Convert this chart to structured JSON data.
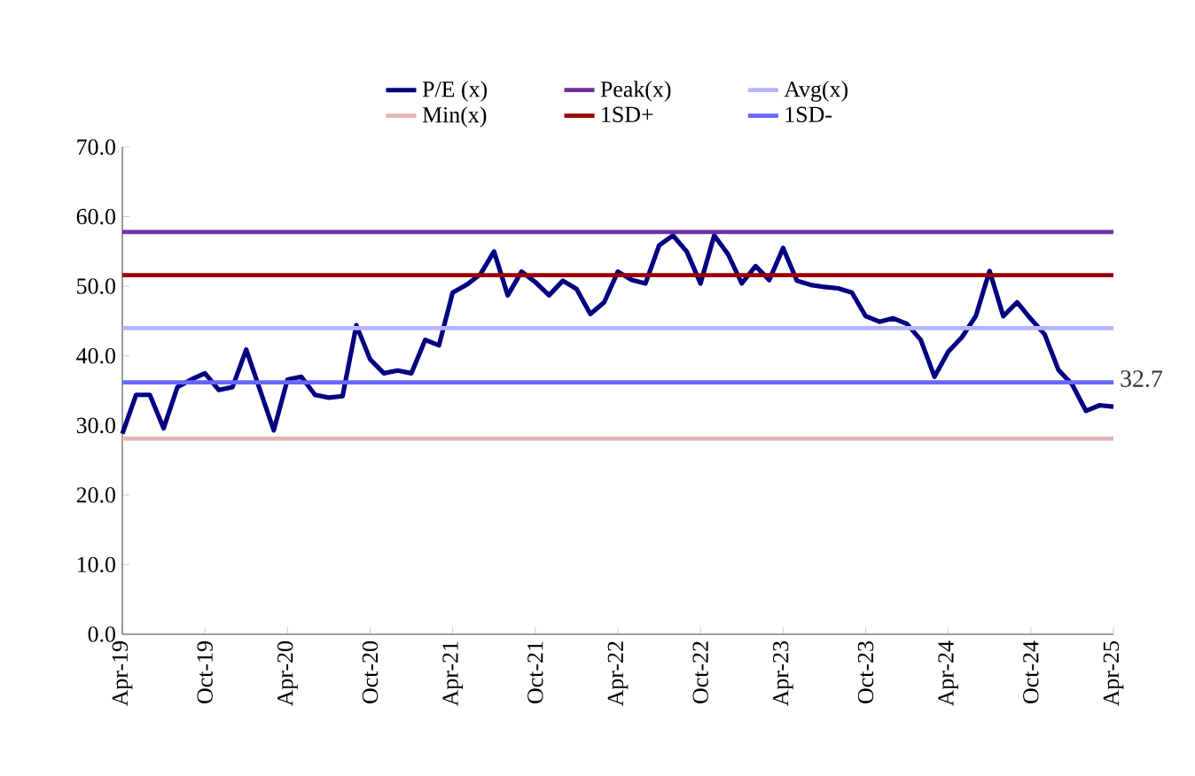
{
  "chart_data": {
    "type": "line",
    "legend": "top",
    "marker": "none",
    "line_style": "solid",
    "grid": false,
    "xlim": [
      "2019-04",
      "2025-04"
    ],
    "xticks": [
      {
        "value": "2019-04",
        "label": "Apr-19"
      },
      {
        "value": "2019-10",
        "label": "Oct-19"
      },
      {
        "value": "2020-04",
        "label": "Apr-20"
      },
      {
        "value": "2020-10",
        "label": "Oct-20"
      },
      {
        "value": "2021-04",
        "label": "Apr-21"
      },
      {
        "value": "2021-10",
        "label": "Oct-21"
      },
      {
        "value": "2022-04",
        "label": "Apr-22"
      },
      {
        "value": "2022-10",
        "label": "Oct-22"
      },
      {
        "value": "2023-04",
        "label": "Apr-23"
      },
      {
        "value": "2023-10",
        "label": "Oct-23"
      },
      {
        "value": "2024-04",
        "label": "Apr-24"
      },
      {
        "value": "2024-10",
        "label": "Oct-24"
      },
      {
        "value": "2025-04",
        "label": "Apr-25"
      }
    ],
    "ylim": [
      0,
      70
    ],
    "yticks": [
      {
        "value": 0,
        "label": "0.0"
      },
      {
        "value": 10,
        "label": "10.0"
      },
      {
        "value": 20,
        "label": "20.0"
      },
      {
        "value": 30,
        "label": "30.0"
      },
      {
        "value": 40,
        "label": "40.0"
      },
      {
        "value": 50,
        "label": "50.0"
      },
      {
        "value": 60,
        "label": "60.0"
      },
      {
        "value": 70,
        "label": "70.0"
      }
    ],
    "x": [
      "2019-04",
      "2019-05",
      "2019-06",
      "2019-07",
      "2019-08",
      "2019-09",
      "2019-10",
      "2019-11",
      "2019-12",
      "2020-01",
      "2020-02",
      "2020-03",
      "2020-04",
      "2020-05",
      "2020-06",
      "2020-07",
      "2020-08",
      "2020-09",
      "2020-10",
      "2020-11",
      "2020-12",
      "2021-01",
      "2021-02",
      "2021-03",
      "2021-04",
      "2021-05",
      "2021-06",
      "2021-07",
      "2021-08",
      "2021-09",
      "2021-10",
      "2021-11",
      "2021-12",
      "2022-01",
      "2022-02",
      "2022-03",
      "2022-04",
      "2022-05",
      "2022-06",
      "2022-07",
      "2022-08",
      "2022-09",
      "2022-10",
      "2022-11",
      "2022-12",
      "2023-01",
      "2023-02",
      "2023-03",
      "2023-04",
      "2023-05",
      "2023-06",
      "2023-07",
      "2023-08",
      "2023-09",
      "2023-10",
      "2023-11",
      "2023-12",
      "2024-01",
      "2024-02",
      "2024-03",
      "2024-04",
      "2024-05",
      "2024-06",
      "2024-07",
      "2024-08",
      "2024-09",
      "2024-10",
      "2024-11",
      "2024-12",
      "2025-01",
      "2025-02",
      "2025-03",
      "2025-04"
    ],
    "series": [
      {
        "name": "P/E (x)",
        "color": "#000080",
        "values": [
          28.8,
          34.4,
          34.4,
          29.6,
          35.5,
          36.6,
          37.5,
          35.1,
          35.5,
          40.9,
          35.1,
          29.3,
          36.6,
          37.0,
          34.4,
          34.0,
          34.2,
          44.4,
          39.5,
          37.5,
          37.9,
          37.5,
          42.3,
          41.5,
          49.1,
          50.2,
          51.7,
          55.0,
          48.7,
          52.1,
          50.6,
          48.7,
          50.8,
          49.6,
          46.0,
          47.7,
          52.1,
          50.9,
          50.4,
          55.9,
          57.3,
          55.0,
          50.4,
          57.3,
          54.6,
          50.4,
          52.9,
          50.9,
          55.5,
          50.8,
          50.2,
          49.9,
          49.7,
          49.1,
          45.7,
          44.9,
          45.4,
          44.6,
          42.3,
          37.0,
          40.6,
          42.7,
          45.7,
          52.2,
          45.7,
          47.7,
          45.3,
          43.1,
          38.0,
          35.9,
          32.1,
          32.9,
          32.7
        ]
      },
      {
        "name": "Peak(x)",
        "color": "#7030a0",
        "x": [
          "2019-04",
          "2025-04"
        ],
        "values": [
          57.8,
          57.8
        ]
      },
      {
        "name": "Avg(x)",
        "color": "#b4b4ff",
        "x": [
          "2019-04",
          "2025-04"
        ],
        "values": [
          44.0,
          44.0
        ]
      },
      {
        "name": "Min(x)",
        "color": "#e6b4b4",
        "x": [
          "2019-04",
          "2025-04"
        ],
        "values": [
          28.1,
          28.1
        ]
      },
      {
        "name": "1SD+",
        "color": "#990000",
        "x": [
          "2019-04",
          "2025-04"
        ],
        "values": [
          51.6,
          51.6
        ]
      },
      {
        "name": "1SD-",
        "color": "#6666ff",
        "x": [
          "2019-04",
          "2025-04"
        ],
        "values": [
          36.2,
          36.2
        ]
      }
    ],
    "annotations": [
      {
        "text": "32.7",
        "x": "2025-04",
        "y": 32.7
      }
    ]
  }
}
